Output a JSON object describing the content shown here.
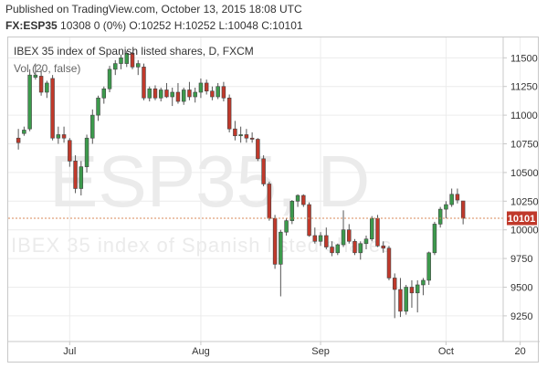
{
  "header": {
    "published_line": "Published on TradingView.com, October 13, 2015 18:08 UTC",
    "symbol": "FX:ESP35",
    "quote_line": "10308 0 (0%) O:10252 H:10252 L:10048 C:10101"
  },
  "legend": {
    "title": "IBEX 35 index of Spanish listed shares, D, FXCM",
    "indicator": "Vol (20, false)"
  },
  "watermark": {
    "big": "ESP35, D",
    "small": "IBEX 35 index of Spanish listed shares"
  },
  "last_price_label": "10101",
  "colors": {
    "up": "#3c9a4c",
    "down": "#c0392b",
    "last_price_line": "#d98a5a",
    "last_price_bg": "#c0392b",
    "grid": "#ececec",
    "watermark": "#ebebeb"
  },
  "chart_data": {
    "type": "candlestick",
    "title": "IBEX 35 index of Spanish listed shares, D, FXCM",
    "y_ticks": [
      "11500",
      "11250",
      "11000",
      "10750",
      "10500",
      "10250",
      "10000",
      "9750",
      "9500",
      "9250"
    ],
    "x_ticks": [
      {
        "label": "Jul",
        "index": 9
      },
      {
        "label": "Aug",
        "index": 32
      },
      {
        "label": "Sep",
        "index": 53
      },
      {
        "label": "Oct",
        "index": 75
      },
      {
        "label": "20",
        "index": 88
      }
    ],
    "ylim": [
      9050,
      11630
    ],
    "grid": true,
    "last_price": 10101,
    "candles": [
      [
        10800,
        10880,
        10700,
        10760
      ],
      [
        10840,
        10900,
        10820,
        10870
      ],
      [
        10880,
        11400,
        10860,
        11350
      ],
      [
        11330,
        11450,
        11310,
        11350
      ],
      [
        11340,
        11400,
        11170,
        11200
      ],
      [
        11200,
        11300,
        11150,
        11280
      ],
      [
        11320,
        11350,
        10780,
        10800
      ],
      [
        10800,
        10900,
        10750,
        10830
      ],
      [
        10830,
        10900,
        10760,
        10800
      ],
      [
        10780,
        10800,
        10550,
        10600
      ],
      [
        10600,
        10650,
        10320,
        10360
      ],
      [
        10360,
        10600,
        10300,
        10550
      ],
      [
        10550,
        10830,
        10500,
        10800
      ],
      [
        10800,
        11050,
        10750,
        11000
      ],
      [
        11000,
        11170,
        10950,
        11150
      ],
      [
        11150,
        11250,
        11100,
        11230
      ],
      [
        11230,
        11430,
        11200,
        11400
      ],
      [
        11400,
        11480,
        11350,
        11450
      ],
      [
        11450,
        11530,
        11400,
        11500
      ],
      [
        11450,
        11560,
        11420,
        11540
      ],
      [
        11540,
        11550,
        11400,
        11420
      ],
      [
        11420,
        11480,
        11350,
        11450
      ],
      [
        11420,
        11450,
        11130,
        11150
      ],
      [
        11150,
        11250,
        11120,
        11230
      ],
      [
        11230,
        11260,
        11130,
        11150
      ],
      [
        11150,
        11240,
        11120,
        11220
      ],
      [
        11220,
        11280,
        11150,
        11160
      ],
      [
        11160,
        11240,
        11080,
        11200
      ],
      [
        11200,
        11280,
        11100,
        11120
      ],
      [
        11120,
        11240,
        11090,
        11220
      ],
      [
        11220,
        11290,
        11130,
        11160
      ],
      [
        11160,
        11240,
        11110,
        11200
      ],
      [
        11200,
        11320,
        11150,
        11280
      ],
      [
        11280,
        11310,
        11180,
        11210
      ],
      [
        11210,
        11250,
        11130,
        11160
      ],
      [
        11160,
        11280,
        11140,
        11250
      ],
      [
        11250,
        11290,
        11120,
        11150
      ],
      [
        11150,
        11180,
        10850,
        10880
      ],
      [
        10880,
        10950,
        10780,
        10820
      ],
      [
        10820,
        10900,
        10760,
        10830
      ],
      [
        10830,
        10880,
        10760,
        10800
      ],
      [
        10800,
        10850,
        10760,
        10790
      ],
      [
        10790,
        10800,
        10600,
        10620
      ],
      [
        10620,
        10650,
        10380,
        10400
      ],
      [
        10400,
        10420,
        10080,
        10100
      ],
      [
        10100,
        10130,
        9660,
        9700
      ],
      [
        9700,
        10000,
        9420,
        9980
      ],
      [
        9980,
        10100,
        9950,
        10080
      ],
      [
        10080,
        10260,
        10050,
        10250
      ],
      [
        10250,
        10310,
        10200,
        10300
      ],
      [
        10300,
        10310,
        10200,
        10220
      ],
      [
        10220,
        10240,
        9940,
        9950
      ],
      [
        9950,
        10020,
        9880,
        9900
      ],
      [
        9900,
        9980,
        9860,
        9950
      ],
      [
        9950,
        10020,
        9830,
        9850
      ],
      [
        9850,
        9900,
        9770,
        9800
      ],
      [
        9800,
        9880,
        9780,
        9870
      ],
      [
        9870,
        10170,
        9850,
        10000
      ],
      [
        10000,
        10050,
        9880,
        9900
      ],
      [
        9900,
        9920,
        9780,
        9800
      ],
      [
        9800,
        9900,
        9740,
        9880
      ],
      [
        9880,
        9950,
        9830,
        9920
      ],
      [
        9920,
        10120,
        9900,
        10100
      ],
      [
        10100,
        10130,
        9850,
        9860
      ],
      [
        9860,
        9900,
        9800,
        9840
      ],
      [
        9840,
        9860,
        9560,
        9580
      ],
      [
        9580,
        9620,
        9230,
        9480
      ],
      [
        9480,
        9580,
        9240,
        9290
      ],
      [
        9290,
        9520,
        9260,
        9500
      ],
      [
        9500,
        9560,
        9320,
        9450
      ],
      [
        9450,
        9560,
        9280,
        9520
      ],
      [
        9520,
        9580,
        9430,
        9560
      ],
      [
        9560,
        9810,
        9520,
        9800
      ],
      [
        9800,
        10070,
        9780,
        10050
      ],
      [
        10050,
        10200,
        10020,
        10180
      ],
      [
        10180,
        10250,
        10100,
        10220
      ],
      [
        10220,
        10360,
        10200,
        10310
      ],
      [
        10310,
        10360,
        10230,
        10260
      ],
      [
        10252,
        10252,
        10048,
        10101
      ]
    ]
  }
}
